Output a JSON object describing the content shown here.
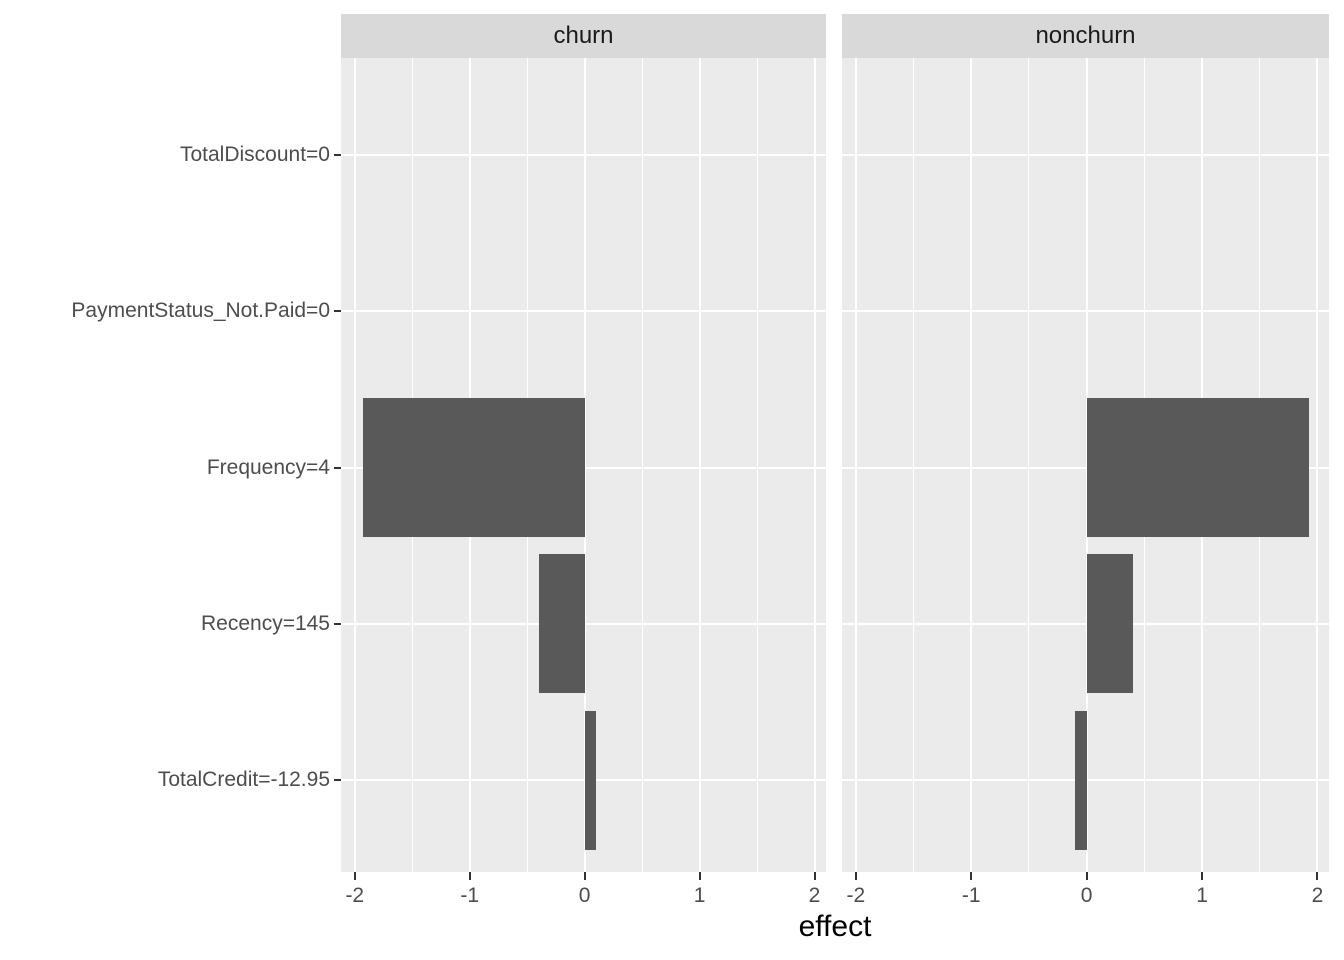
{
  "chart_data": {
    "type": "bar",
    "orientation": "horizontal",
    "title": "",
    "xlabel": "effect",
    "ylabel": "",
    "categories": [
      "TotalDiscount=0",
      "PaymentStatus_Not.Paid=0",
      "Frequency=4",
      "Recency=145",
      "TotalCredit=-12.95"
    ],
    "facets": [
      {
        "label": "churn",
        "values": [
          0,
          0,
          -1.93,
          -0.4,
          0.1
        ]
      },
      {
        "label": "nonchurn",
        "values": [
          0,
          0,
          1.93,
          0.4,
          -0.1
        ]
      }
    ],
    "x_ticks": [
      -2,
      -1,
      0,
      1,
      2
    ],
    "x_minor_ticks": [
      -1.5,
      -0.5,
      0.5,
      1.5
    ],
    "xlim": [
      -2.12,
      2.1
    ],
    "grid": true,
    "legend": "none",
    "colors": {
      "bar_fill": "#595959",
      "panel_background": "#ebebeb",
      "strip_background": "#d9d9d9",
      "gridline": "#ffffff",
      "tick_mark": "#333333",
      "axis_text": "#4d4d4d",
      "strip_text": "#1a1a1a",
      "axis_title": "#000000"
    }
  }
}
